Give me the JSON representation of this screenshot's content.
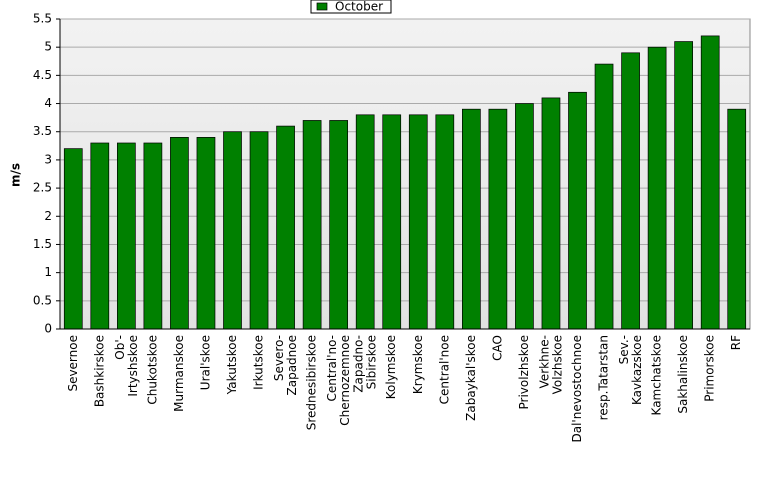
{
  "chart_data": {
    "type": "bar",
    "y_label": "m/s",
    "categories": [
      "Severnoe",
      "Bashkirskoe",
      "Ob'- Irtyshskoe",
      "Chukotskoe",
      "Murmanskoe",
      "Ural'skoe",
      "Yakutskoe",
      "Irkutskoe",
      "Severo- Zapadnoe",
      "Srednesibirskoe",
      "Central'no- Chernozemnoe",
      "Zapadno- Sibirskoe",
      "Kolymskoe",
      "Krymskoe",
      "Central'noe",
      "Zabaykal'skoe",
      "CAO",
      "Privolzhskoe",
      "Verkhne- Volzhskoe",
      "Dal'nevostochnoe",
      "resp.Tatarstan",
      "Sev.- Kavkazskoe",
      "Kamchatskoe",
      "Sakhalinskoe",
      "Primorskoe",
      "RF"
    ],
    "series": [
      {
        "name": "October",
        "color": "#008000",
        "values": [
          3.2,
          3.3,
          3.3,
          3.3,
          3.4,
          3.4,
          3.5,
          3.5,
          3.6,
          3.7,
          3.7,
          3.8,
          3.8,
          3.8,
          3.8,
          3.9,
          3.9,
          4.0,
          4.1,
          4.2,
          4.7,
          4.9,
          5.0,
          5.1,
          5.2,
          3.9
        ]
      }
    ],
    "ylim": [
      0,
      5.5
    ],
    "yticks": [
      0,
      0.5,
      1,
      1.5,
      2,
      2.5,
      3,
      3.5,
      4,
      4.5,
      5,
      5.5
    ],
    "grid": true,
    "legend": "top"
  }
}
